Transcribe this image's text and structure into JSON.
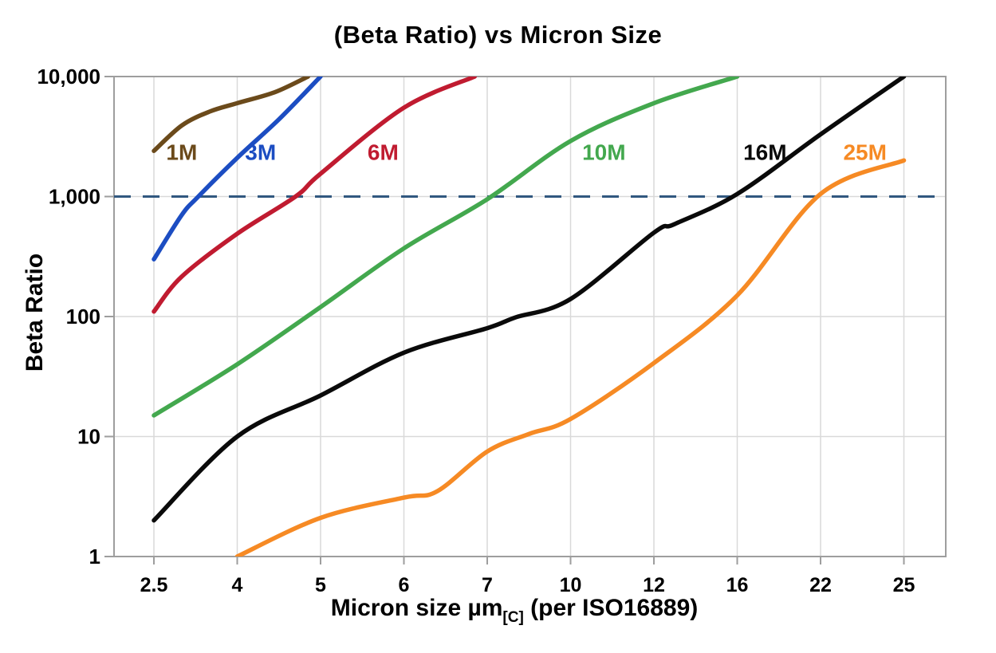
{
  "title": "(Beta Ratio) vs Micron Size",
  "axis_titles": {
    "y": "Beta Ratio",
    "x_main": "Micron size µm",
    "x_subscript": "[C]",
    "x_suffix": " (per ISO16889)"
  },
  "chart_data": {
    "type": "line",
    "title": "(Beta Ratio) vs Micron Size",
    "xlabel": "Micron size µm[C] (per ISO16889)",
    "ylabel": "Beta Ratio",
    "x_axis": {
      "scale": "category",
      "tick_values": [
        2.5,
        4,
        5,
        6,
        7,
        10,
        12,
        16,
        22,
        25
      ],
      "tick_labels": [
        "2.5",
        "4",
        "5",
        "6",
        "7",
        "10",
        "12",
        "16",
        "22",
        "25"
      ]
    },
    "y_axis": {
      "scale": "log",
      "min": 1,
      "max": 10000,
      "tick_values": [
        1,
        10,
        100,
        1000,
        10000
      ],
      "tick_labels": [
        "1",
        "10",
        "100",
        "1,000",
        "10,000"
      ]
    },
    "grid": true,
    "colors": {
      "gridline": "#d9d9d9",
      "frame": "#9e9e9e",
      "threshold": "#31587F"
    },
    "threshold_line": {
      "beta": 1000,
      "style": "dashed",
      "color": "#31587F"
    },
    "series": [
      {
        "name": "1M",
        "color": "#6B4A1B",
        "label": {
          "micron": 3.0,
          "beta": 2350
        },
        "points": [
          [
            2.5,
            2400
          ],
          [
            3,
            3900
          ],
          [
            3.5,
            5100
          ],
          [
            4,
            6000
          ],
          [
            4.45,
            7400
          ],
          [
            4.85,
            10000
          ]
        ]
      },
      {
        "name": "3M",
        "color": "#1C4DC2",
        "label": {
          "micron": 4.28,
          "beta": 2350
        },
        "points": [
          [
            2.5,
            300
          ],
          [
            3,
            700
          ],
          [
            3.3,
            1000
          ],
          [
            4,
            2100
          ],
          [
            4.5,
            4400
          ],
          [
            5,
            10000
          ]
        ]
      },
      {
        "name": "6M",
        "color": "#C01B30",
        "label": {
          "micron": 5.75,
          "beta": 2350
        },
        "points": [
          [
            2.5,
            110
          ],
          [
            3,
            215
          ],
          [
            4,
            490
          ],
          [
            4.7,
            1000
          ],
          [
            5,
            1550
          ],
          [
            6,
            5500
          ],
          [
            6.85,
            10000
          ]
        ]
      },
      {
        "name": "10M",
        "color": "#43A84E",
        "label": {
          "micron": 10.8,
          "beta": 2350
        },
        "points": [
          [
            2.5,
            15
          ],
          [
            4,
            40
          ],
          [
            5,
            120
          ],
          [
            6,
            370
          ],
          [
            7,
            950
          ],
          [
            10,
            2900
          ],
          [
            12,
            6000
          ],
          [
            16,
            10000
          ]
        ]
      },
      {
        "name": "16M",
        "color": "#0a0a0a",
        "label": {
          "micron": 18.0,
          "beta": 2350
        },
        "points": [
          [
            2.5,
            2
          ],
          [
            4,
            10
          ],
          [
            5,
            22
          ],
          [
            6,
            50
          ],
          [
            7,
            80
          ],
          [
            8,
            98
          ],
          [
            10,
            140
          ],
          [
            12,
            500
          ],
          [
            13,
            590
          ],
          [
            16,
            1050
          ],
          [
            22,
            3300
          ],
          [
            25,
            10000
          ]
        ]
      },
      {
        "name": "25M",
        "color": "#F68A24",
        "label": {
          "micron": 23.6,
          "beta": 2350
        },
        "points": [
          [
            4,
            1
          ],
          [
            5,
            2.1
          ],
          [
            6,
            3.1
          ],
          [
            6.4,
            3.5
          ],
          [
            7,
            7.5
          ],
          [
            8.5,
            10.5
          ],
          [
            10,
            14
          ],
          [
            12,
            41
          ],
          [
            16,
            150
          ],
          [
            22,
            1050
          ],
          [
            25,
            2000
          ]
        ]
      }
    ]
  }
}
